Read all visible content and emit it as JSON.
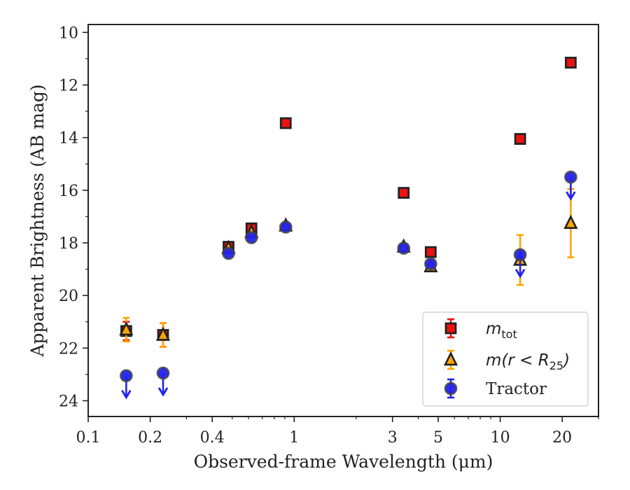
{
  "chart_data": {
    "type": "scatter",
    "xlabel": "Observed-frame Wavelength (μm)",
    "ylabel": "Apparent Brightness (AB mag)",
    "xscale": "log",
    "xlim": [
      0.1,
      30
    ],
    "ylim": [
      24.6,
      9.7
    ],
    "y_inverted": true,
    "x_ticks": [
      0.1,
      0.2,
      0.4,
      1,
      3,
      5,
      10,
      20
    ],
    "x_tick_labels": [
      "0.1",
      "0.2",
      "0.4",
      "1",
      "3",
      "5",
      "10",
      "20"
    ],
    "y_ticks": [
      10,
      12,
      14,
      16,
      18,
      20,
      22,
      24
    ],
    "y_tick_labels": [
      "10",
      "12",
      "14",
      "16",
      "18",
      "20",
      "22",
      "24"
    ],
    "legend_position": "lower-right",
    "series": [
      {
        "key": "mtot",
        "legend_parts": [
          "m",
          "tot"
        ],
        "marker": "square",
        "color": "#ee1111",
        "edge": "#222222",
        "err_color": "#ee1111",
        "points": [
          {
            "x": 0.153,
            "y": 21.35,
            "err": 0.35
          },
          {
            "x": 0.231,
            "y": 21.5,
            "err": 0.45
          },
          {
            "x": 0.48,
            "y": 18.15
          },
          {
            "x": 0.62,
            "y": 17.45
          },
          {
            "x": 0.91,
            "y": 13.45
          },
          {
            "x": 3.4,
            "y": 16.1
          },
          {
            "x": 4.6,
            "y": 18.35
          },
          {
            "x": 12.5,
            "y": 14.05
          },
          {
            "x": 22.0,
            "y": 11.15
          }
        ]
      },
      {
        "key": "mr25",
        "legend_parts": [
          "m(r < R",
          "25",
          ")"
        ],
        "marker": "triangle",
        "color": "#ffa500",
        "edge": "#222222",
        "err_color": "#ffa500",
        "points": [
          {
            "x": 0.153,
            "y": 21.3,
            "err": 0.45
          },
          {
            "x": 0.231,
            "y": 21.5,
            "err": 0.45
          },
          {
            "x": 0.48,
            "y": 18.2
          },
          {
            "x": 0.62,
            "y": 17.6
          },
          {
            "x": 0.91,
            "y": 17.35
          },
          {
            "x": 3.4,
            "y": 18.15
          },
          {
            "x": 4.6,
            "y": 18.9
          },
          {
            "x": 12.5,
            "y": 18.65,
            "err": 0.95
          },
          {
            "x": 22.0,
            "y": 17.25,
            "err": 1.3
          }
        ]
      },
      {
        "key": "tractor",
        "legend_parts": [
          "Tractor"
        ],
        "marker": "circle",
        "color": "#2222ee",
        "edge": "#444444",
        "err_color": "#2222ee",
        "points": [
          {
            "x": 0.153,
            "y": 23.05,
            "upper_limit": true
          },
          {
            "x": 0.231,
            "y": 22.95,
            "upper_limit": true
          },
          {
            "x": 0.48,
            "y": 18.4
          },
          {
            "x": 0.62,
            "y": 17.8
          },
          {
            "x": 0.91,
            "y": 17.4
          },
          {
            "x": 3.4,
            "y": 18.2
          },
          {
            "x": 4.6,
            "y": 18.8
          },
          {
            "x": 12.5,
            "y": 18.45,
            "upper_limit": true
          },
          {
            "x": 22.0,
            "y": 15.5,
            "upper_limit": true
          }
        ]
      }
    ]
  }
}
